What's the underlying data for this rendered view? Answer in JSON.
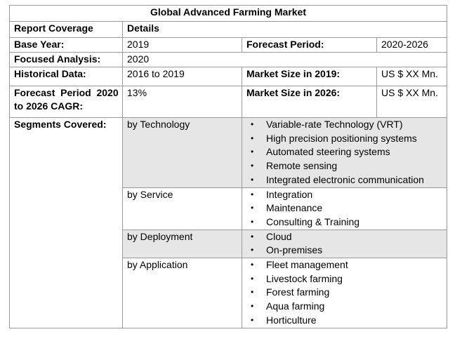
{
  "title": "Global Advanced Farming Market",
  "header": {
    "coverage": "Report Coverage",
    "details": "Details"
  },
  "base": {
    "label": "Base Year:",
    "value": "2019",
    "forecast_label": "Forecast Period:",
    "forecast_value": "2020-2026"
  },
  "focused": {
    "label": "Focused Analysis:",
    "value": "2020"
  },
  "historical": {
    "label": "Historical Data:",
    "value": "2016 to 2019",
    "size_label": "Market Size in 2019:",
    "size_value": "US $ XX Mn."
  },
  "cagr": {
    "label_line1": "Forecast  Period  2020",
    "label_line2": "to 2026 CAGR:",
    "value": "13%",
    "size_label": "Market Size in 2026:",
    "size_value": "US $ XX Mn."
  },
  "segments": {
    "label": "Segments Covered:",
    "bullet": "•",
    "groups": [
      {
        "name": "by Technology",
        "items": [
          "Variable-rate Technology (VRT)",
          "High precision positioning systems",
          "Automated steering systems",
          "Remote sensing",
          "Integrated electronic communication"
        ]
      },
      {
        "name": "by Service",
        "items": [
          "Integration",
          "Maintenance",
          "Consulting & Training"
        ]
      },
      {
        "name": "by Deployment",
        "items": [
          "Cloud",
          "On-premises"
        ]
      },
      {
        "name": "by Application",
        "items": [
          "Fleet management",
          "Livestock farming",
          "Forest farming",
          "Aqua farming",
          "Horticulture"
        ]
      }
    ]
  },
  "colors": {
    "shaded_row": "#e6e6e6",
    "border": "#9a9a9a"
  }
}
